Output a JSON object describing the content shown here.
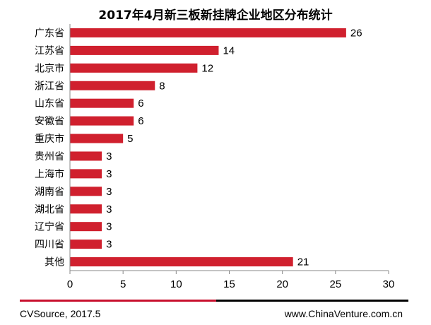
{
  "chart_data": {
    "type": "bar",
    "orientation": "horizontal",
    "title": "2017年4月新三板新挂牌企业地区分布统计",
    "categories": [
      "广东省",
      "江苏省",
      "北京市",
      "浙江省",
      "山东省",
      "安徽省",
      "重庆市",
      "贵州省",
      "上海市",
      "湖南省",
      "湖北省",
      "辽宁省",
      "四川省",
      "其他"
    ],
    "values": [
      26,
      14,
      12,
      8,
      6,
      6,
      5,
      3,
      3,
      3,
      3,
      3,
      3,
      21
    ],
    "xlim": [
      0,
      30
    ],
    "xticks": [
      0,
      5,
      10,
      15,
      20,
      25,
      30
    ],
    "grid": false,
    "bar_color": "#d0202e"
  },
  "footer": {
    "source": "CVSource, 2017.5",
    "website": "www.ChinaVenture.com.cn"
  },
  "colors": {
    "accent_red": "#c8102e",
    "accent_black": "#000000"
  }
}
